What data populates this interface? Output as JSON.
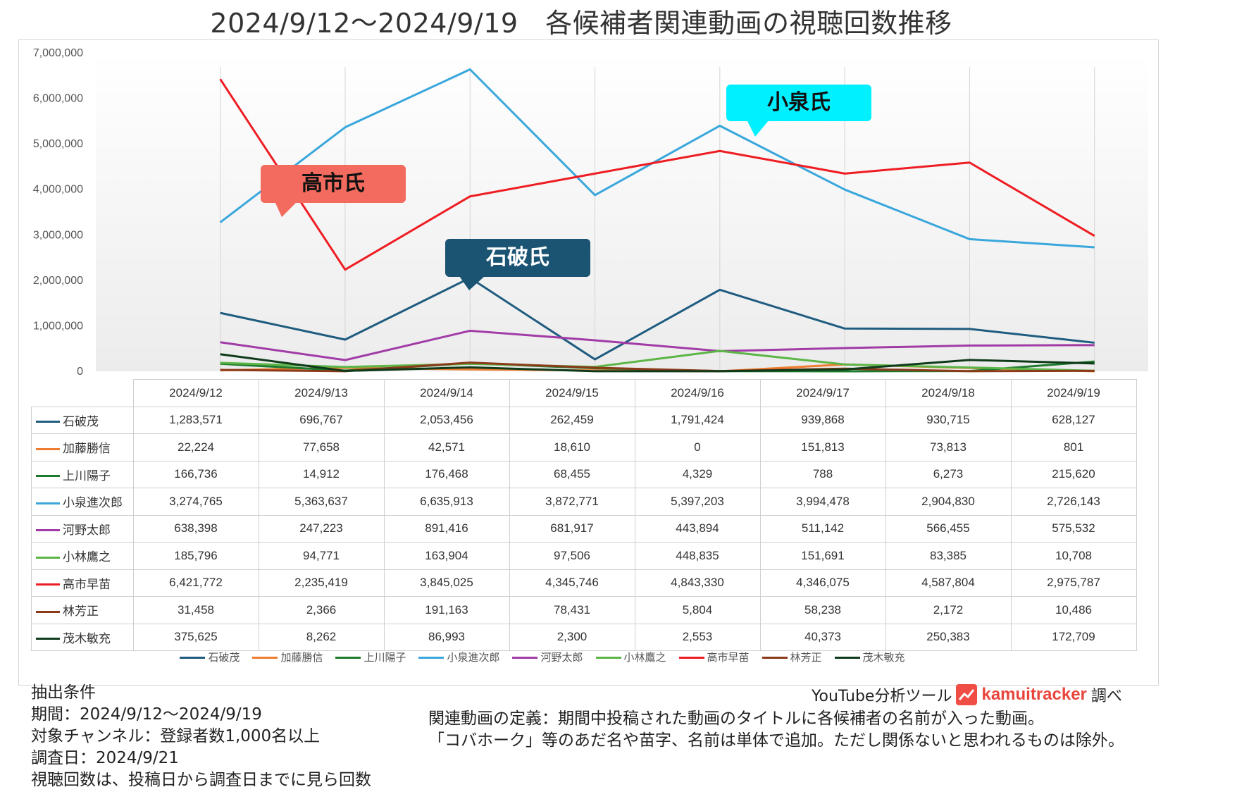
{
  "title": "2024/9/12〜2024/9/19　各候補者関連動画の視聴回数推移",
  "chart_data": {
    "type": "line",
    "title": "2024/9/12〜2024/9/19　各候補者関連動画の視聴回数推移",
    "categories": [
      "2024/9/12",
      "2024/9/13",
      "2024/9/14",
      "2024/9/15",
      "2024/9/16",
      "2024/9/17",
      "2024/9/18",
      "2024/9/19"
    ],
    "ylim": [
      0,
      7000000
    ],
    "yticks": [
      "0",
      "1,000,000",
      "2,000,000",
      "3,000,000",
      "4,000,000",
      "5,000,000",
      "6,000,000",
      "7,000,000"
    ],
    "grid": true,
    "legend_position": "bottom",
    "series": [
      {
        "name": "石破茂",
        "color": "#1f5c7f",
        "values": [
          1283571,
          696767,
          2053456,
          262459,
          1791424,
          939868,
          930715,
          628127
        ],
        "labels": [
          "1,283,571",
          "696,767",
          "2,053,456",
          "262,459",
          "1,791,424",
          "939,868",
          "930,715",
          "628,127"
        ]
      },
      {
        "name": "加藤勝信",
        "color": "#ee7d31",
        "values": [
          22224,
          77658,
          42571,
          18610,
          0,
          151813,
          73813,
          801
        ],
        "labels": [
          "22,224",
          "77,658",
          "42,571",
          "18,610",
          "0",
          "151,813",
          "73,813",
          "801"
        ]
      },
      {
        "name": "上川陽子",
        "color": "#1e7a2d",
        "values": [
          166736,
          14912,
          176468,
          68455,
          4329,
          788,
          6273,
          215620
        ],
        "labels": [
          "166,736",
          "14,912",
          "176,468",
          "68,455",
          "4,329",
          "788",
          "6,273",
          "215,620"
        ]
      },
      {
        "name": "小泉進次郎",
        "color": "#3aa7dc",
        "values": [
          3274765,
          5363637,
          6635913,
          3872771,
          5397203,
          3994478,
          2904830,
          2726143
        ],
        "labels": [
          "3,274,765",
          "5,363,637",
          "6,635,913",
          "3,872,771",
          "5,397,203",
          "3,994,478",
          "2,904,830",
          "2,726,143"
        ]
      },
      {
        "name": "河野太郎",
        "color": "#a13ba6",
        "values": [
          638398,
          247223,
          891416,
          681917,
          443894,
          511142,
          566455,
          575532
        ],
        "labels": [
          "638,398",
          "247,223",
          "891,416",
          "681,917",
          "443,894",
          "511,142",
          "566,455",
          "575,532"
        ]
      },
      {
        "name": "小林鷹之",
        "color": "#5cb546",
        "values": [
          185796,
          94771,
          163904,
          97506,
          448835,
          151691,
          83385,
          10708
        ],
        "labels": [
          "185,796",
          "94,771",
          "163,904",
          "97,506",
          "448,835",
          "151,691",
          "83,385",
          "10,708"
        ]
      },
      {
        "name": "高市早苗",
        "color": "#ee1d23",
        "values": [
          6421772,
          2235419,
          3845025,
          4345746,
          4843330,
          4346075,
          4587804,
          2975787
        ],
        "labels": [
          "6,421,772",
          "2,235,419",
          "3,845,025",
          "4,345,746",
          "4,843,330",
          "4,346,075",
          "4,587,804",
          "2,975,787"
        ]
      },
      {
        "name": "林芳正",
        "color": "#8b3a1a",
        "values": [
          31458,
          2366,
          191163,
          78431,
          5804,
          58238,
          2172,
          10486
        ],
        "labels": [
          "31,458",
          "2,366",
          "191,163",
          "78,431",
          "5,804",
          "58,238",
          "2,172",
          "10,486"
        ]
      },
      {
        "name": "茂木敏充",
        "color": "#0f3b1b",
        "values": [
          375625,
          8262,
          86993,
          2300,
          2553,
          40373,
          250383,
          172709
        ],
        "labels": [
          "375,625",
          "8,262",
          "86,993",
          "2,300",
          "2,553",
          "40,373",
          "250,383",
          "172,709"
        ]
      }
    ],
    "annotations": [
      {
        "text": "小泉氏",
        "bg": "#00f0ff",
        "fg": "#111111"
      },
      {
        "text": "高市氏",
        "bg": "#f36b5f",
        "fg": "#111111"
      },
      {
        "text": "石破氏",
        "bg": "#1b5373",
        "fg": "#ffffff"
      }
    ]
  },
  "footer": {
    "left_lines": [
      "抽出条件",
      "期間：2024/9/12〜2024/9/19",
      "対象チャンネル：登録者数1,000名以上",
      "調査日：2024/9/21",
      "視聴回数は、投稿日から調査日までに見ら回数"
    ],
    "right_lines": [
      "関連動画の定義：期間中投稿された動画のタイトルに各候補者の名前が入った動画。",
      "「コバホーク」等のあだ名や苗字、名前は単体で追加。ただし関係ないと思われるものは除外。"
    ],
    "credit_prefix": "YouTube分析ツール",
    "credit_brand": "kamuitracker",
    "credit_suffix": "調べ"
  }
}
